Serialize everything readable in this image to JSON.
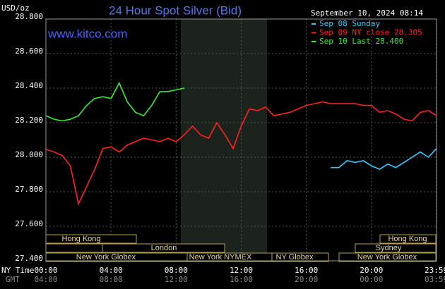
{
  "chart_data": {
    "type": "line",
    "title": "24 Hour Spot Silver (Bid)",
    "watermark": "www.kitco.com",
    "y_label": "USD/oz",
    "timestamp": "September 10, 2024 08:14",
    "x_row_labels": [
      "NY Time",
      "GMT"
    ],
    "x": [
      0,
      0.5,
      1,
      1.5,
      2,
      2.5,
      3,
      3.5,
      4,
      4.5,
      5,
      5.5,
      6,
      6.5,
      7,
      7.5,
      8,
      8.5,
      9,
      9.5,
      10,
      10.5,
      11,
      11.5,
      12,
      12.5,
      13,
      13.5,
      14,
      14.5,
      15,
      15.5,
      16,
      16.5,
      17,
      17.5,
      18,
      18.5,
      19,
      19.5,
      20,
      20.5,
      21,
      21.5,
      22,
      22.5,
      23,
      23.5,
      24
    ],
    "series": [
      {
        "name": "Sep 08 Sunday",
        "color": "#33ccff",
        "values": [
          null,
          null,
          null,
          null,
          null,
          null,
          null,
          null,
          null,
          null,
          null,
          null,
          null,
          null,
          null,
          null,
          null,
          null,
          null,
          null,
          null,
          null,
          null,
          null,
          null,
          null,
          null,
          null,
          null,
          null,
          null,
          null,
          null,
          null,
          null,
          27.94,
          27.94,
          27.98,
          27.97,
          27.98,
          27.95,
          27.93,
          27.96,
          27.94,
          27.97,
          28.0,
          28.03,
          28.0,
          28.05
        ]
      },
      {
        "name": "Sep 09 NY close 28.305",
        "color": "#ff2020",
        "values": [
          28.045,
          28.03,
          28.01,
          27.95,
          27.73,
          27.83,
          27.93,
          28.05,
          28.06,
          28.03,
          28.07,
          28.09,
          28.11,
          28.1,
          28.09,
          28.11,
          28.09,
          28.13,
          28.18,
          28.13,
          28.11,
          28.2,
          28.13,
          28.05,
          28.18,
          28.28,
          28.27,
          28.29,
          28.24,
          28.25,
          28.26,
          28.28,
          28.3,
          28.31,
          28.32,
          28.31,
          28.31,
          28.31,
          28.31,
          28.3,
          28.3,
          28.26,
          28.27,
          28.25,
          28.22,
          28.21,
          28.26,
          28.27,
          28.24
        ]
      },
      {
        "name": "Sep 10 Last 28.400",
        "color": "#33ee33",
        "values": [
          28.24,
          28.22,
          28.21,
          28.22,
          28.24,
          28.3,
          28.34,
          28.35,
          28.34,
          28.43,
          28.32,
          28.26,
          28.24,
          28.3,
          28.38,
          28.38,
          28.39,
          28.4,
          null,
          null,
          null,
          null,
          null,
          null,
          null,
          null,
          null,
          null,
          null,
          null,
          null,
          null,
          null,
          null,
          null,
          null,
          null,
          null,
          null,
          null,
          null,
          null,
          null,
          null,
          null,
          null,
          null,
          null,
          null
        ]
      }
    ],
    "xlim": [
      0,
      24
    ],
    "xticks": [
      {
        "value": 0,
        "label": "00:00"
      },
      {
        "value": 4,
        "label": "04:00"
      },
      {
        "value": 8,
        "label": "08:00"
      },
      {
        "value": 12,
        "label": "12:00"
      },
      {
        "value": 16,
        "label": "16:00"
      },
      {
        "value": 20,
        "label": "20:00"
      },
      {
        "value": 23.983,
        "label": "23:59"
      }
    ],
    "gmt_labels": [
      "04:00",
      "08:00",
      "12:00",
      "16:00",
      "20:00",
      "00:00",
      "03:59"
    ],
    "ylim": [
      27.4,
      28.8
    ],
    "yticks": [
      {
        "value": 27.4,
        "label": "27.400"
      },
      {
        "value": 27.6,
        "label": "27.600"
      },
      {
        "value": 27.8,
        "label": "27.800"
      },
      {
        "value": 28.0,
        "label": "28.000"
      },
      {
        "value": 28.2,
        "label": "28.200"
      },
      {
        "value": 28.4,
        "label": "28.400"
      },
      {
        "value": 28.6,
        "label": "28.600"
      },
      {
        "value": 28.8,
        "label": "28.800"
      }
    ],
    "grid": true,
    "sessions": [
      "Hong Kong",
      "London",
      "New York Globex",
      "New York NYMEX",
      "NY Globex",
      "Hong Kong",
      "Sydney",
      "New York Globex"
    ]
  }
}
